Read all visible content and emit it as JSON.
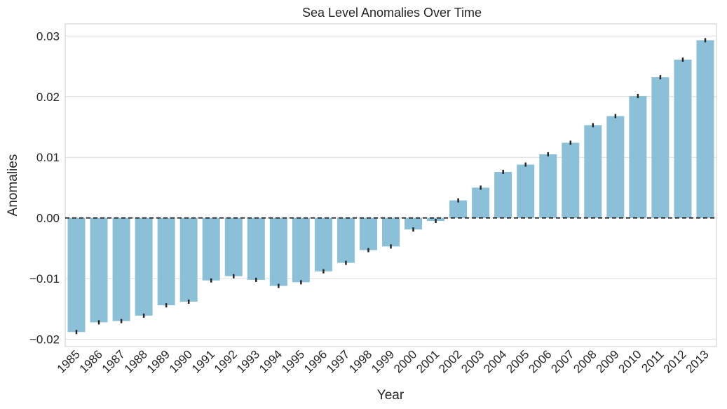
{
  "chart_data": {
    "type": "bar",
    "title": "Sea Level Anomalies Over Time",
    "xlabel": "Year",
    "ylabel": "Anomalies",
    "categories": [
      "1985",
      "1986",
      "1987",
      "1988",
      "1989",
      "1990",
      "1991",
      "1992",
      "1993",
      "1994",
      "1995",
      "1996",
      "1997",
      "1998",
      "1999",
      "2000",
      "2001",
      "2002",
      "2003",
      "2004",
      "2005",
      "2006",
      "2007",
      "2008",
      "2009",
      "2010",
      "2011",
      "2012",
      "2013"
    ],
    "values": [
      -0.0188,
      -0.0172,
      -0.017,
      -0.0161,
      -0.0144,
      -0.0138,
      -0.0103,
      -0.0096,
      -0.0102,
      -0.0112,
      -0.0106,
      -0.0088,
      -0.0074,
      -0.0053,
      -0.0047,
      -0.0019,
      -0.0005,
      0.0029,
      0.005,
      0.0076,
      0.0088,
      0.0105,
      0.0124,
      0.0153,
      0.0168,
      0.0201,
      0.0232,
      0.0261,
      0.0293
    ],
    "ylim": [
      -0.0212,
      0.032
    ],
    "yticks": [
      -0.02,
      -0.01,
      0.0,
      0.01,
      0.02,
      0.03
    ],
    "ytick_labels": [
      "−0.02",
      "−0.01",
      "0.00",
      "0.01",
      "0.02",
      "0.03"
    ],
    "bar_color": "#8cc0d8",
    "errorbar_color": "#262626",
    "reference_line": {
      "y": 0,
      "style": "dashed",
      "color": "#000000"
    },
    "grid": "horizontal",
    "legend": "none"
  }
}
